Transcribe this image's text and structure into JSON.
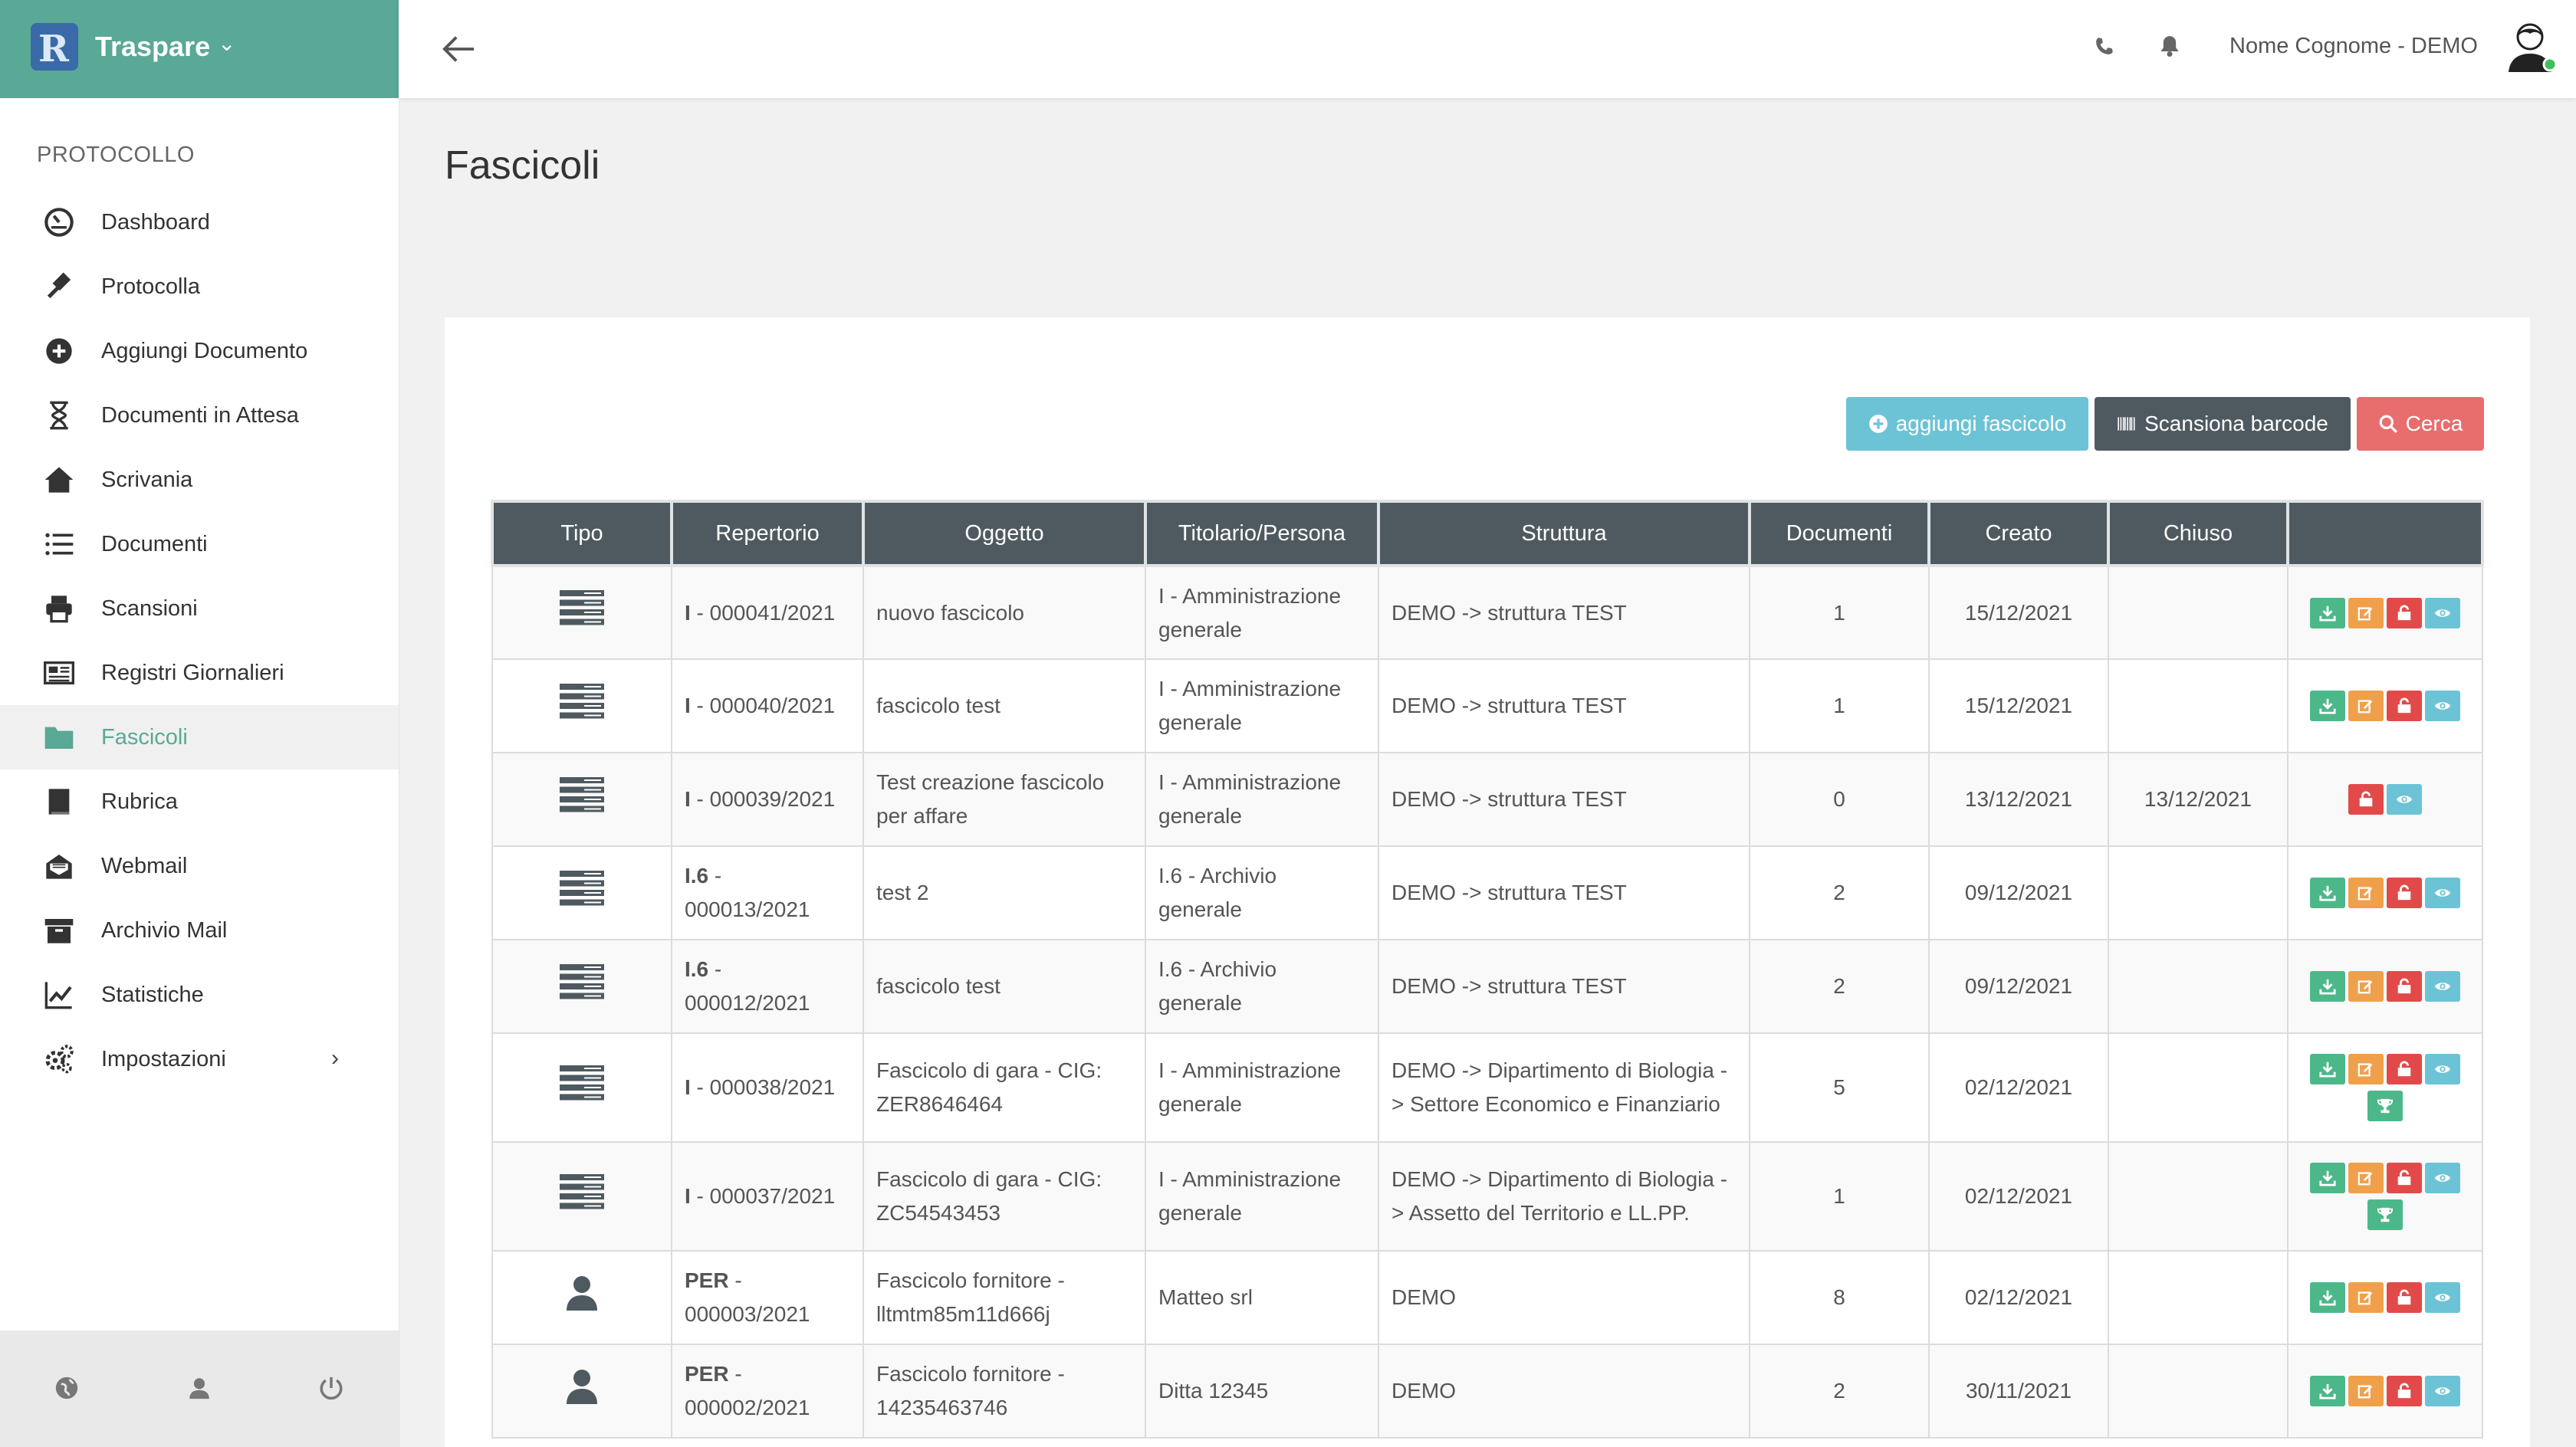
{
  "app": {
    "name": "Traspare",
    "logo_letter": "R"
  },
  "sidebar": {
    "section": "PROTOCOLLO",
    "items": [
      {
        "label": "Dashboard",
        "icon": "dashboard-icon"
      },
      {
        "label": "Protocolla",
        "icon": "gavel-icon"
      },
      {
        "label": "Aggiungi Documento",
        "icon": "plus-circle-icon"
      },
      {
        "label": "Documenti in Attesa",
        "icon": "hourglass-icon"
      },
      {
        "label": "Scrivania",
        "icon": "home-icon"
      },
      {
        "label": "Documenti",
        "icon": "list-icon"
      },
      {
        "label": "Scansioni",
        "icon": "printer-icon"
      },
      {
        "label": "Registri Giornalieri",
        "icon": "newspaper-icon"
      },
      {
        "label": "Fascicoli",
        "icon": "folder-icon",
        "active": true
      },
      {
        "label": "Rubrica",
        "icon": "address-book-icon"
      },
      {
        "label": "Webmail",
        "icon": "envelope-open-icon"
      },
      {
        "label": "Archivio Mail",
        "icon": "archive-icon"
      },
      {
        "label": "Statistiche",
        "icon": "line-chart-icon"
      },
      {
        "label": "Impostazioni",
        "icon": "gears-icon",
        "has_submenu": true
      }
    ],
    "footer_icons": [
      "globe-icon",
      "user-icon",
      "power-icon"
    ]
  },
  "topbar": {
    "user": "Nome Cognome - DEMO"
  },
  "page": {
    "title": "Fascicoli"
  },
  "toolbar": {
    "add_label": "aggiungi fascicolo",
    "scan_label": "Scansiona barcode",
    "search_label": "Cerca"
  },
  "table": {
    "headers": [
      "Tipo",
      "Repertorio",
      "Oggetto",
      "Titolario/Persona",
      "Struttura",
      "Documenti",
      "Creato",
      "Chiuso",
      ""
    ],
    "rows": [
      {
        "tipo": "server-icon",
        "rep_code": "I",
        "rep_num": " - 000041/2021",
        "oggetto": "nuovo fascicolo",
        "titolario": "I - Amministrazione generale",
        "struttura": "DEMO -> struttura TEST",
        "documenti": "1",
        "creato": "15/12/2021",
        "chiuso": "",
        "actions": [
          "download",
          "edit",
          "lock",
          "view"
        ]
      },
      {
        "tipo": "server-icon",
        "rep_code": "I",
        "rep_num": " - 000040/2021",
        "oggetto": "fascicolo test",
        "titolario": "I - Amministrazione generale",
        "struttura": "DEMO -> struttura TEST",
        "documenti": "1",
        "creato": "15/12/2021",
        "chiuso": "",
        "actions": [
          "download",
          "edit",
          "lock",
          "view"
        ]
      },
      {
        "tipo": "server-icon",
        "rep_code": "I",
        "rep_num": " - 000039/2021",
        "oggetto": "Test creazione fascicolo per affare",
        "titolario": "I - Amministrazione generale",
        "struttura": "DEMO -> struttura TEST",
        "documenti": "0",
        "creato": "13/12/2021",
        "chiuso": "13/12/2021",
        "actions": [
          "lock",
          "view"
        ]
      },
      {
        "tipo": "server-icon",
        "rep_code": "I.6",
        "rep_num": " - 000013/2021",
        "oggetto": "test 2",
        "titolario": "I.6 - Archivio generale",
        "struttura": "DEMO -> struttura TEST",
        "documenti": "2",
        "creato": "09/12/2021",
        "chiuso": "",
        "actions": [
          "download",
          "edit",
          "lock",
          "view"
        ]
      },
      {
        "tipo": "server-icon",
        "rep_code": "I.6",
        "rep_num": " - 000012/2021",
        "oggetto": "fascicolo test",
        "titolario": "I.6 - Archivio generale",
        "struttura": "DEMO -> struttura TEST",
        "documenti": "2",
        "creato": "09/12/2021",
        "chiuso": "",
        "actions": [
          "download",
          "edit",
          "lock",
          "view"
        ]
      },
      {
        "tipo": "server-icon",
        "rep_code": "I",
        "rep_num": " - 000038/2021",
        "oggetto": "Fascicolo di gara - CIG: ZER8646464",
        "titolario": "I - Amministrazione generale",
        "struttura": "DEMO -> Dipartimento di Biologia -> Settore Economico e Finanziario",
        "documenti": "5",
        "creato": "02/12/2021",
        "chiuso": "",
        "actions": [
          "download",
          "edit",
          "lock",
          "view",
          "trophy"
        ]
      },
      {
        "tipo": "server-icon",
        "rep_code": "I",
        "rep_num": " - 000037/2021",
        "oggetto": "Fascicolo di gara - CIG: ZC54543453",
        "titolario": "I - Amministrazione generale",
        "struttura": "DEMO -> Dipartimento di Biologia -> Assetto del Territorio e LL.PP.",
        "documenti": "1",
        "creato": "02/12/2021",
        "chiuso": "",
        "actions": [
          "download",
          "edit",
          "lock",
          "view",
          "trophy"
        ]
      },
      {
        "tipo": "person-icon",
        "rep_code": "PER",
        "rep_num": " - 000003/2021",
        "oggetto": "Fascicolo fornitore - lltmtm85m11d666j",
        "titolario": "Matteo srl",
        "struttura": "DEMO",
        "documenti": "8",
        "creato": "02/12/2021",
        "chiuso": "",
        "actions": [
          "download",
          "edit",
          "lock",
          "view"
        ]
      },
      {
        "tipo": "person-icon",
        "rep_code": "PER",
        "rep_num": " - 000002/2021",
        "oggetto": "Fascicolo fornitore - 14235463746",
        "titolario": "Ditta 12345",
        "struttura": "DEMO",
        "documenti": "2",
        "creato": "30/11/2021",
        "chiuso": "",
        "actions": [
          "download",
          "edit",
          "lock",
          "view"
        ]
      }
    ]
  },
  "colors": {
    "brand": "#5aa896",
    "header_dark": "#4e5a60",
    "info": "#6cc3d6",
    "danger": "#e86d6d",
    "success": "#4cb88a",
    "warning": "#f0a04b"
  }
}
